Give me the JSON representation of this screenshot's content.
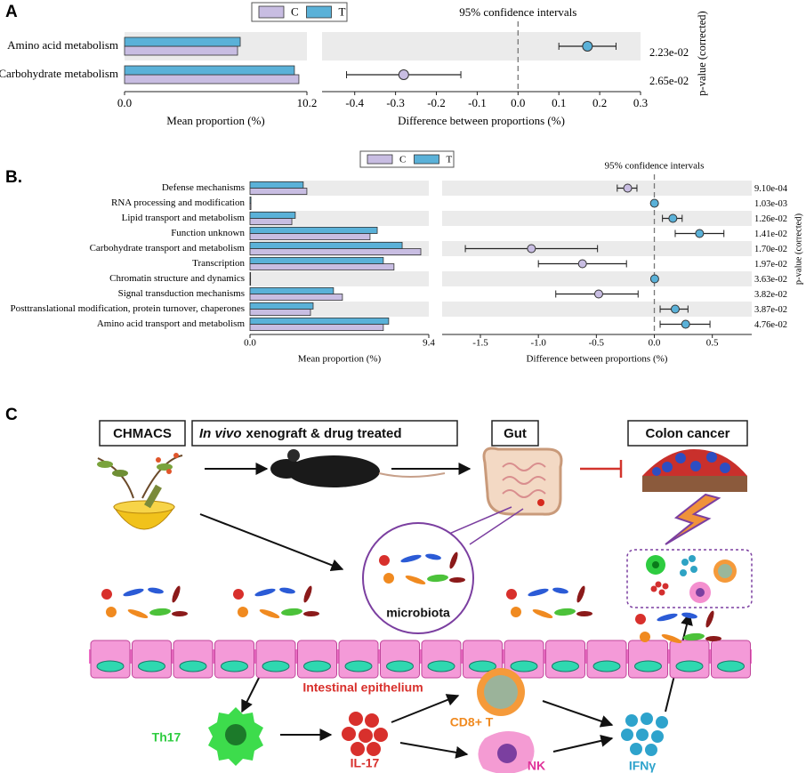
{
  "panel_labels": [
    "A",
    "B.",
    "C"
  ],
  "chart_data": [
    {
      "type": "bar",
      "orientation": "horizontal",
      "categories": [
        "Amino acid metabolism",
        "Carbohydrate metabolism"
      ],
      "series": [
        {
          "name": "C",
          "color": "#c8bde2",
          "values": [
            6.32,
            9.75
          ]
        },
        {
          "name": "T",
          "color": "#5ab1d8",
          "values": [
            6.47,
            9.5
          ]
        }
      ],
      "xlabel": "Mean proportion (%)",
      "xlim": [
        0,
        10.2
      ],
      "xticks": [
        {
          "value": 0,
          "label": "0.0"
        },
        10.2
      ]
    },
    {
      "type": "ci",
      "title": "95% confidence intervals",
      "values": [
        0.17,
        -0.28
      ],
      "ci_low": [
        0.1,
        -0.42
      ],
      "ci_high": [
        0.24,
        -0.14
      ],
      "xlabel": "Difference between proportions (%)",
      "xlim": [
        -0.48,
        0.3
      ],
      "xticks": [
        -0.4,
        -0.3,
        -0.2,
        -0.1,
        {
          "value": 0,
          "label": "0.0"
        },
        0.1,
        0.2,
        0.3
      ],
      "p_values": [
        0.0223,
        0.0265
      ],
      "p_value_labels": [
        "2.23e-02",
        "2.65e-02"
      ],
      "p_value_axis_label": "p-value (corrected)"
    },
    {
      "type": "bar",
      "orientation": "horizontal",
      "categories": [
        "Defense mechanisms",
        "RNA processing and modification",
        "Lipid transport and metabolism",
        "Function unknown",
        "Carbohydrate transport and metabolism",
        "Transcription",
        "Chromatin structure and dynamics",
        "Signal transduction mechanisms",
        "Posttranslational modification, protein turnover, chaperones",
        "Amino acid transport and metabolism"
      ],
      "series": [
        {
          "name": "C",
          "color": "#c8bde2",
          "values": [
            2.99,
            0.05,
            2.2,
            6.31,
            8.98,
            7.57,
            0.03,
            4.86,
            3.18,
            7.01
          ]
        },
        {
          "name": "T",
          "color": "#5ab1d8",
          "values": [
            2.8,
            0.05,
            2.38,
            6.69,
            8.0,
            7.01,
            0.03,
            4.39,
            3.32,
            7.29
          ]
        }
      ],
      "xlabel": "Mean proportion (%)",
      "xlim": [
        0,
        9.4
      ],
      "xticks": [
        {
          "value": 0,
          "label": "0.0"
        },
        9.4
      ]
    },
    {
      "type": "ci",
      "title": "95% confidence intervals",
      "values": [
        -0.23,
        0.001,
        0.16,
        0.39,
        -1.06,
        -0.62,
        0.003,
        -0.48,
        0.18,
        0.27
      ],
      "ci_low": [
        -0.32,
        -0.01,
        0.07,
        0.18,
        -1.63,
        -1.0,
        -0.01,
        -0.85,
        0.05,
        0.05
      ],
      "ci_high": [
        -0.15,
        0.01,
        0.24,
        0.6,
        -0.49,
        -0.24,
        0.02,
        -0.14,
        0.29,
        0.48
      ],
      "xlabel": "Difference between proportions (%)",
      "xlim": [
        -1.83,
        0.84
      ],
      "xticks": [
        -1.5,
        {
          "value": -1,
          "label": "-1.0"
        },
        -0.5,
        {
          "value": 0,
          "label": "0.0"
        },
        0.5
      ],
      "p_values": [
        0.00091,
        0.00103,
        0.0126,
        0.0141,
        0.017,
        0.0197,
        0.0363,
        0.0382,
        0.0387,
        0.0476
      ],
      "p_value_labels": [
        "9.10e-04",
        "1.03e-03",
        "1.26e-02",
        "1.41e-02",
        "1.70e-02",
        "1.97e-02",
        "3.63e-02",
        "3.82e-02",
        "3.87e-02",
        "4.76e-02"
      ],
      "p_value_axis_label": "p-value (corrected)"
    }
  ],
  "diagram": {
    "boxes": {
      "chmacs": "CHMACS",
      "in_vivo": "In vivo",
      "xenograft": "xenograft & drug treated",
      "gut": "Gut",
      "colon_cancer": "Colon cancer"
    },
    "labels": {
      "microbiota": "microbiota",
      "epithelium": "Intestinal epithelium",
      "th17": "Th17",
      "il17": "IL-17",
      "cd8": "CD8+ T",
      "nk": "NK",
      "ifn": "IFNγ"
    }
  }
}
